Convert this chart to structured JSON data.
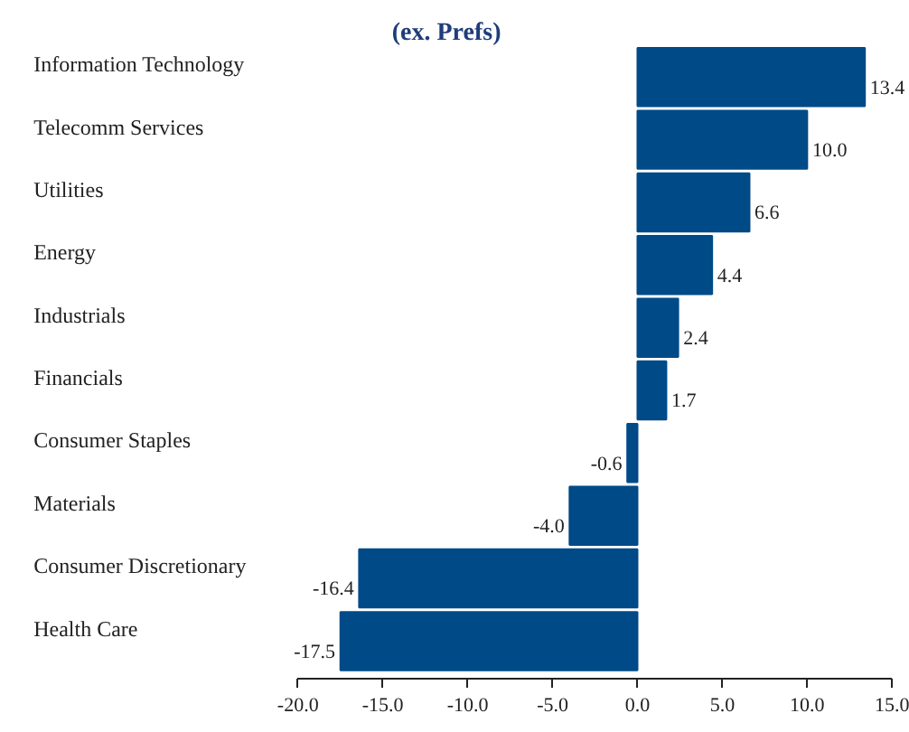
{
  "chart_data": {
    "type": "bar",
    "orientation": "horizontal",
    "title": "(ex. Prefs)",
    "categories": [
      "Information Technology",
      "Telecomm Services",
      "Utilities",
      "Energy",
      "Industrials",
      "Financials",
      "Consumer Staples",
      "Materials",
      "Consumer Discretionary",
      "Health Care"
    ],
    "values": [
      13.4,
      10.0,
      6.6,
      4.4,
      2.4,
      1.7,
      -0.6,
      -4.0,
      -16.4,
      -17.5
    ],
    "value_labels": [
      "13.4",
      "10.0",
      "6.6",
      "4.4",
      "2.4",
      "1.7",
      "-0.6",
      "-4.0",
      "-16.4",
      "-17.5"
    ],
    "color": "#004a87",
    "xlim": [
      -20,
      15
    ],
    "xticks": [
      {
        "value": -20,
        "label": "-20.0"
      },
      {
        "value": -15,
        "label": "-15.0"
      },
      {
        "value": -10,
        "label": "-10.0"
      },
      {
        "value": -5,
        "label": "-5.0"
      },
      {
        "value": 0,
        "label": "0.0"
      },
      {
        "value": 5,
        "label": "5.0"
      },
      {
        "value": 10,
        "label": "10.0"
      },
      {
        "value": 15,
        "label": "15.0"
      }
    ],
    "grid": false
  }
}
